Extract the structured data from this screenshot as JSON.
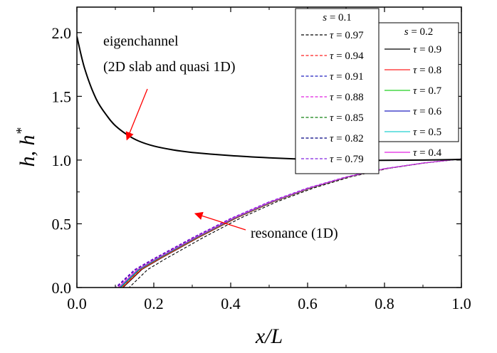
{
  "chart_data": {
    "type": "line",
    "title": "",
    "xlabel": "x/L",
    "ylabel": "h, h*",
    "xlim": [
      0.0,
      1.0
    ],
    "ylim": [
      0.0,
      2.2
    ],
    "xticks": [
      "0.0",
      "0.2",
      "0.4",
      "0.6",
      "0.8",
      "1.0"
    ],
    "yticks": [
      "0.0",
      "0.5",
      "1.0",
      "1.5",
      "2.0"
    ],
    "grid": false,
    "annotations": [
      {
        "text_lines": [
          "eigenchannel",
          "(2D slab and quasi 1D)"
        ],
        "arrow_to": [
          0.13,
          1.16
        ]
      },
      {
        "text_lines": [
          "resonance (1D)"
        ],
        "arrow_to": [
          0.3,
          0.58
        ]
      }
    ],
    "eigenchannel": {
      "name": "eigenchannel",
      "color": "#000000",
      "x": [
        0.0,
        0.02,
        0.05,
        0.08,
        0.1,
        0.13,
        0.16,
        0.2,
        0.25,
        0.3,
        0.4,
        0.5,
        0.6,
        0.7,
        0.8,
        0.9,
        1.0
      ],
      "y": [
        1.97,
        1.72,
        1.48,
        1.34,
        1.27,
        1.2,
        1.15,
        1.11,
        1.08,
        1.06,
        1.035,
        1.018,
        1.005,
        0.998,
        0.998,
        1.0,
        1.005
      ]
    },
    "resonance_profile": {
      "u": [
        0.0,
        0.05,
        0.1,
        0.2,
        0.3,
        0.4,
        0.5,
        0.6,
        0.7,
        0.8,
        0.9
      ],
      "y": [
        0.0,
        0.13,
        0.21,
        0.36,
        0.5,
        0.62,
        0.72,
        0.8,
        0.86,
        0.9,
        0.93
      ]
    },
    "legends": [
      {
        "title": "s = 0.1",
        "style": "dashed",
        "series": [
          {
            "name": "τ = 0.97",
            "color": "#000000",
            "onset": 0.136
          },
          {
            "name": "τ = 0.94",
            "color": "#ff2020",
            "onset": 0.116
          },
          {
            "name": "τ = 0.91",
            "color": "#2020c0",
            "onset": 0.112
          },
          {
            "name": "τ = 0.88",
            "color": "#e020e0",
            "onset": 0.104
          },
          {
            "name": "τ = 0.85",
            "color": "#108010",
            "onset": 0.108
          },
          {
            "name": "τ = 0.82",
            "color": "#000080",
            "onset": 0.102
          },
          {
            "name": "τ = 0.79",
            "color": "#8020e0",
            "onset": 0.1
          }
        ]
      },
      {
        "title": "s = 0.2",
        "style": "solid",
        "series": [
          {
            "name": "τ = 0.9",
            "color": "#000000",
            "onset": 0.12
          },
          {
            "name": "τ = 0.8",
            "color": "#ff2020",
            "onset": 0.118
          },
          {
            "name": "τ = 0.7",
            "color": "#20d020",
            "onset": 0.114
          },
          {
            "name": "τ = 0.6",
            "color": "#2020c0",
            "onset": 0.112
          },
          {
            "name": "τ = 0.5",
            "color": "#20d0d0",
            "onset": 0.11
          },
          {
            "name": "τ = 0.4",
            "color": "#e020e0",
            "onset": 0.108
          }
        ]
      }
    ]
  }
}
